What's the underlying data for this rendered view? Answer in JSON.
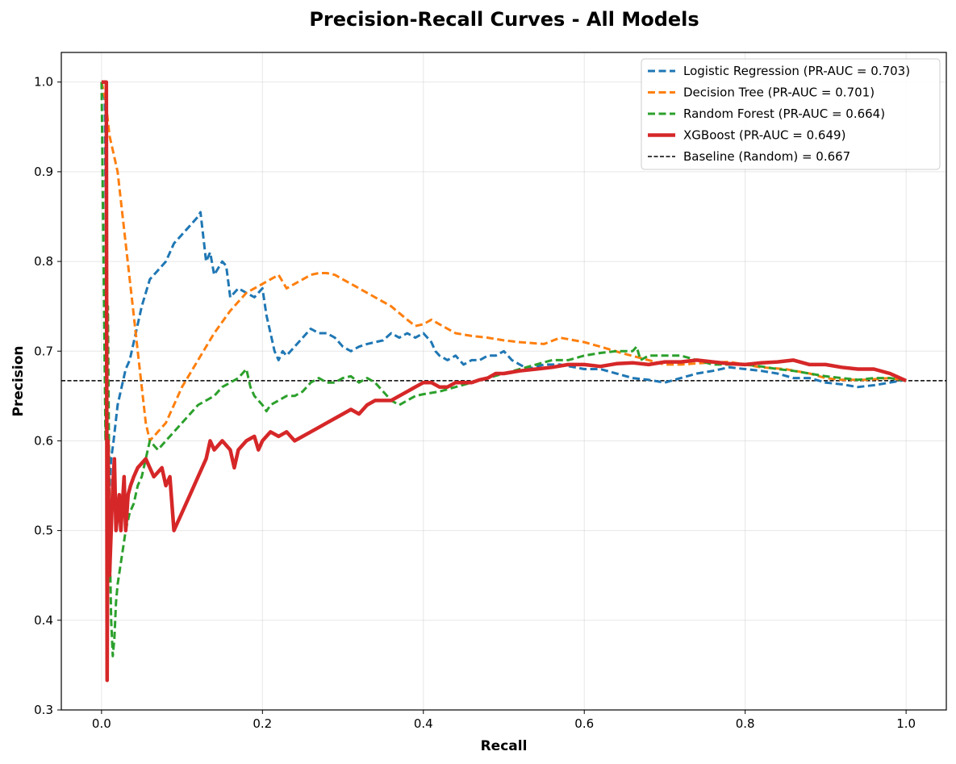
{
  "chart_data": {
    "type": "line",
    "title": "Precision-Recall Curves - All Models",
    "xlabel": "Recall",
    "ylabel": "Precision",
    "xlim": [
      -0.05,
      1.05
    ],
    "ylim": [
      0.3,
      1.033
    ],
    "xticks": [
      0.0,
      0.2,
      0.4,
      0.6,
      0.8,
      1.0
    ],
    "xtick_labels": [
      "0.0",
      "0.2",
      "0.4",
      "0.6",
      "0.8",
      "1.0"
    ],
    "yticks": [
      0.3,
      0.4,
      0.5,
      0.6,
      0.7,
      0.8,
      0.9,
      1.0
    ],
    "ytick_labels": [
      "0.3",
      "0.4",
      "0.5",
      "0.6",
      "0.7",
      "0.8",
      "0.9",
      "1.0"
    ],
    "grid": true,
    "legend_position": "top-right",
    "series": [
      {
        "name": "Logistic Regression (PR-AUC = 0.703)",
        "color": "#1f77b4",
        "style": "dashed",
        "width": 3,
        "x": [
          0.0,
          0.004,
          0.008,
          0.012,
          0.015,
          0.02,
          0.025,
          0.03,
          0.035,
          0.04,
          0.05,
          0.06,
          0.07,
          0.08,
          0.09,
          0.1,
          0.11,
          0.12,
          0.123,
          0.13,
          0.135,
          0.14,
          0.15,
          0.155,
          0.16,
          0.17,
          0.18,
          0.19,
          0.2,
          0.205,
          0.21,
          0.215,
          0.22,
          0.225,
          0.23,
          0.24,
          0.25,
          0.26,
          0.27,
          0.28,
          0.29,
          0.3,
          0.31,
          0.32,
          0.33,
          0.34,
          0.35,
          0.36,
          0.37,
          0.38,
          0.39,
          0.4,
          0.41,
          0.415,
          0.42,
          0.43,
          0.44,
          0.45,
          0.46,
          0.47,
          0.48,
          0.49,
          0.5,
          0.51,
          0.52,
          0.53,
          0.55,
          0.57,
          0.6,
          0.62,
          0.64,
          0.66,
          0.68,
          0.7,
          0.72,
          0.74,
          0.76,
          0.78,
          0.8,
          0.82,
          0.84,
          0.86,
          0.88,
          0.9,
          0.92,
          0.94,
          0.96,
          0.98,
          1.0
        ],
        "y": [
          1.0,
          0.98,
          0.52,
          0.58,
          0.6,
          0.64,
          0.66,
          0.68,
          0.69,
          0.71,
          0.75,
          0.78,
          0.79,
          0.8,
          0.82,
          0.83,
          0.84,
          0.85,
          0.855,
          0.8,
          0.81,
          0.785,
          0.8,
          0.795,
          0.76,
          0.77,
          0.765,
          0.76,
          0.77,
          0.74,
          0.72,
          0.7,
          0.69,
          0.7,
          0.695,
          0.705,
          0.715,
          0.725,
          0.72,
          0.72,
          0.715,
          0.705,
          0.7,
          0.705,
          0.708,
          0.71,
          0.712,
          0.72,
          0.715,
          0.72,
          0.715,
          0.72,
          0.71,
          0.7,
          0.695,
          0.69,
          0.695,
          0.685,
          0.69,
          0.69,
          0.695,
          0.695,
          0.7,
          0.69,
          0.685,
          0.68,
          0.685,
          0.685,
          0.68,
          0.68,
          0.675,
          0.67,
          0.668,
          0.665,
          0.67,
          0.675,
          0.678,
          0.682,
          0.68,
          0.678,
          0.675,
          0.67,
          0.67,
          0.665,
          0.663,
          0.66,
          0.662,
          0.665,
          0.668
        ]
      },
      {
        "name": "Decision Tree (PR-AUC = 0.701)",
        "color": "#ff7f0e",
        "style": "dashed",
        "width": 3,
        "x": [
          0.0,
          0.005,
          0.01,
          0.015,
          0.02,
          0.025,
          0.03,
          0.035,
          0.04,
          0.045,
          0.05,
          0.055,
          0.06,
          0.07,
          0.08,
          0.09,
          0.1,
          0.12,
          0.14,
          0.16,
          0.18,
          0.2,
          0.21,
          0.22,
          0.23,
          0.24,
          0.25,
          0.26,
          0.27,
          0.28,
          0.29,
          0.3,
          0.32,
          0.34,
          0.36,
          0.38,
          0.39,
          0.4,
          0.41,
          0.42,
          0.44,
          0.46,
          0.48,
          0.5,
          0.52,
          0.55,
          0.57,
          0.6,
          0.62,
          0.65,
          0.68,
          0.7,
          0.72,
          0.75,
          0.78,
          0.8,
          0.82,
          0.85,
          0.88,
          0.9,
          0.92,
          0.95,
          0.98,
          1.0
        ],
        "y": [
          1.0,
          0.98,
          0.94,
          0.92,
          0.9,
          0.86,
          0.82,
          0.78,
          0.74,
          0.7,
          0.66,
          0.62,
          0.6,
          0.61,
          0.62,
          0.64,
          0.66,
          0.69,
          0.72,
          0.745,
          0.765,
          0.775,
          0.78,
          0.785,
          0.77,
          0.775,
          0.78,
          0.785,
          0.787,
          0.787,
          0.785,
          0.78,
          0.77,
          0.76,
          0.75,
          0.735,
          0.728,
          0.73,
          0.735,
          0.73,
          0.72,
          0.717,
          0.715,
          0.712,
          0.71,
          0.708,
          0.715,
          0.71,
          0.705,
          0.697,
          0.69,
          0.685,
          0.685,
          0.687,
          0.688,
          0.685,
          0.682,
          0.68,
          0.675,
          0.67,
          0.668,
          0.668,
          0.67,
          0.667
        ]
      },
      {
        "name": "Random Forest (PR-AUC = 0.664)",
        "color": "#2ca02c",
        "style": "dashed",
        "width": 3,
        "x": [
          0.0,
          0.005,
          0.008,
          0.01,
          0.012,
          0.014,
          0.016,
          0.018,
          0.02,
          0.025,
          0.03,
          0.035,
          0.04,
          0.045,
          0.05,
          0.055,
          0.06,
          0.07,
          0.08,
          0.09,
          0.1,
          0.11,
          0.12,
          0.13,
          0.14,
          0.15,
          0.16,
          0.17,
          0.18,
          0.185,
          0.19,
          0.2,
          0.205,
          0.21,
          0.22,
          0.23,
          0.24,
          0.25,
          0.26,
          0.27,
          0.28,
          0.29,
          0.3,
          0.31,
          0.32,
          0.33,
          0.34,
          0.35,
          0.36,
          0.37,
          0.38,
          0.39,
          0.4,
          0.42,
          0.44,
          0.46,
          0.48,
          0.5,
          0.52,
          0.54,
          0.56,
          0.58,
          0.6,
          0.62,
          0.64,
          0.66,
          0.665,
          0.67,
          0.68,
          0.7,
          0.72,
          0.74,
          0.76,
          0.78,
          0.8,
          0.82,
          0.84,
          0.86,
          0.88,
          0.9,
          0.92,
          0.94,
          0.96,
          0.98,
          1.0
        ],
        "y": [
          1.0,
          0.6,
          0.75,
          0.5,
          0.4,
          0.36,
          0.38,
          0.42,
          0.44,
          0.47,
          0.5,
          0.52,
          0.53,
          0.55,
          0.56,
          0.58,
          0.6,
          0.59,
          0.6,
          0.61,
          0.62,
          0.63,
          0.64,
          0.645,
          0.65,
          0.66,
          0.665,
          0.67,
          0.68,
          0.66,
          0.65,
          0.64,
          0.633,
          0.64,
          0.645,
          0.65,
          0.65,
          0.655,
          0.665,
          0.67,
          0.665,
          0.665,
          0.67,
          0.672,
          0.665,
          0.67,
          0.665,
          0.655,
          0.645,
          0.64,
          0.645,
          0.65,
          0.652,
          0.655,
          0.66,
          0.665,
          0.67,
          0.675,
          0.68,
          0.685,
          0.69,
          0.69,
          0.695,
          0.698,
          0.7,
          0.7,
          0.705,
          0.69,
          0.695,
          0.695,
          0.695,
          0.69,
          0.685,
          0.685,
          0.685,
          0.683,
          0.68,
          0.678,
          0.675,
          0.672,
          0.67,
          0.668,
          0.67,
          0.67,
          0.667
        ]
      },
      {
        "name": "XGBoost (PR-AUC = 0.649)",
        "color": "#d62728",
        "style": "solid",
        "width": 4.5,
        "x": [
          0.0,
          0.003,
          0.006,
          0.007,
          0.008,
          0.01,
          0.012,
          0.014,
          0.016,
          0.018,
          0.02,
          0.022,
          0.024,
          0.026,
          0.028,
          0.03,
          0.033,
          0.036,
          0.04,
          0.045,
          0.05,
          0.055,
          0.06,
          0.065,
          0.07,
          0.075,
          0.08,
          0.085,
          0.09,
          0.1,
          0.11,
          0.12,
          0.13,
          0.135,
          0.14,
          0.15,
          0.16,
          0.165,
          0.17,
          0.18,
          0.19,
          0.195,
          0.2,
          0.21,
          0.22,
          0.23,
          0.24,
          0.25,
          0.26,
          0.27,
          0.28,
          0.29,
          0.3,
          0.31,
          0.32,
          0.33,
          0.34,
          0.35,
          0.36,
          0.37,
          0.38,
          0.39,
          0.4,
          0.41,
          0.42,
          0.43,
          0.44,
          0.45,
          0.46,
          0.47,
          0.48,
          0.49,
          0.5,
          0.52,
          0.54,
          0.56,
          0.58,
          0.6,
          0.62,
          0.64,
          0.66,
          0.68,
          0.7,
          0.72,
          0.74,
          0.76,
          0.78,
          0.8,
          0.82,
          0.84,
          0.86,
          0.88,
          0.9,
          0.92,
          0.94,
          0.96,
          0.98,
          1.0
        ],
        "y": [
          1.0,
          1.0,
          1.0,
          0.333,
          0.6,
          0.45,
          0.5,
          0.55,
          0.58,
          0.5,
          0.52,
          0.54,
          0.5,
          0.53,
          0.56,
          0.5,
          0.54,
          0.55,
          0.56,
          0.57,
          0.575,
          0.58,
          0.57,
          0.56,
          0.565,
          0.57,
          0.55,
          0.56,
          0.5,
          0.52,
          0.54,
          0.56,
          0.58,
          0.6,
          0.59,
          0.6,
          0.59,
          0.57,
          0.59,
          0.6,
          0.605,
          0.59,
          0.6,
          0.61,
          0.605,
          0.61,
          0.6,
          0.605,
          0.61,
          0.615,
          0.62,
          0.625,
          0.63,
          0.635,
          0.63,
          0.64,
          0.645,
          0.645,
          0.645,
          0.65,
          0.655,
          0.66,
          0.665,
          0.665,
          0.66,
          0.66,
          0.665,
          0.665,
          0.665,
          0.668,
          0.67,
          0.675,
          0.675,
          0.678,
          0.68,
          0.682,
          0.685,
          0.685,
          0.683,
          0.686,
          0.687,
          0.685,
          0.688,
          0.688,
          0.69,
          0.688,
          0.686,
          0.685,
          0.687,
          0.688,
          0.69,
          0.685,
          0.685,
          0.682,
          0.68,
          0.68,
          0.675,
          0.667
        ]
      },
      {
        "name": "Baseline (Random) = 0.667",
        "color": "#000000",
        "style": "dashed-thin",
        "width": 1.5,
        "x": [
          -0.05,
          1.05
        ],
        "y": [
          0.667,
          0.667
        ]
      }
    ]
  }
}
